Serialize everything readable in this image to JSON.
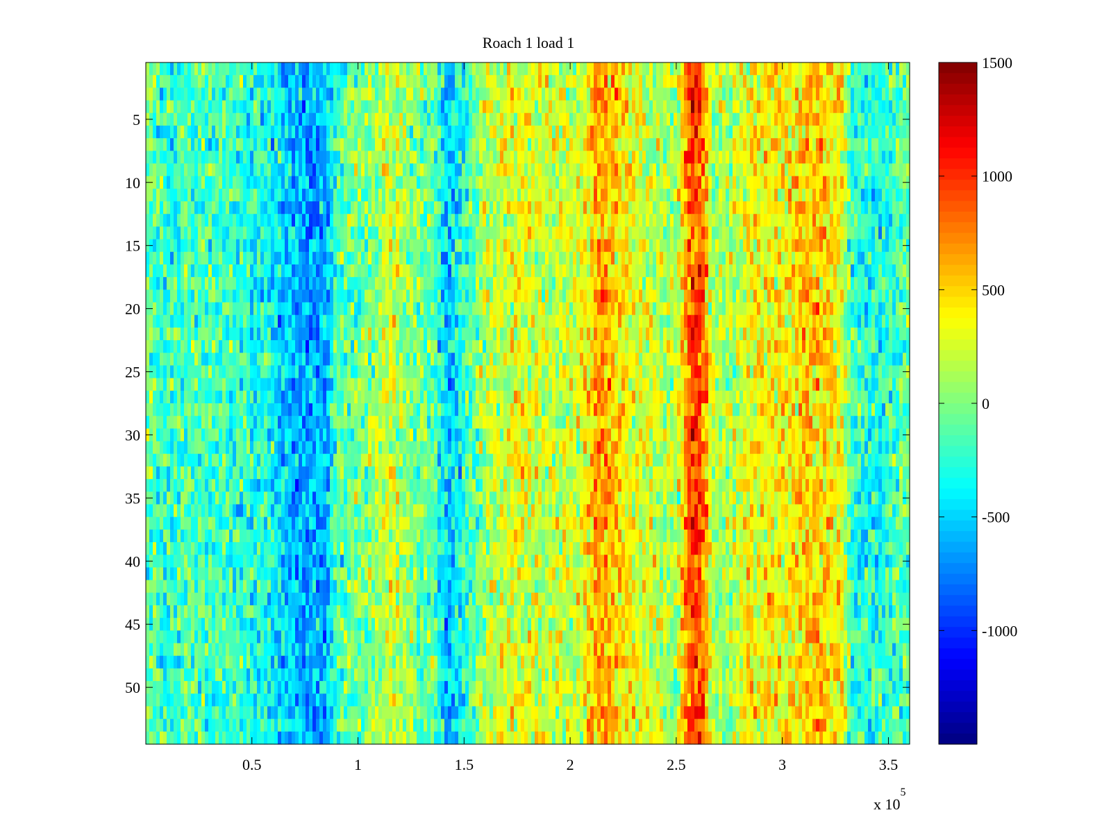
{
  "chart_data": {
    "type": "heatmap",
    "title": "Roach 1 load 1",
    "xlabel": "",
    "ylabel": "",
    "x_exponent_label": "x 10",
    "x_exponent_power": "5",
    "xlim": [
      0,
      3.6
    ],
    "ylim": [
      0.5,
      54.5
    ],
    "rows": 54,
    "x_ticks": [
      0.5,
      1,
      1.5,
      2,
      2.5,
      3,
      3.5
    ],
    "x_tick_labels": [
      "0.5",
      "1",
      "1.5",
      "2",
      "2.5",
      "3",
      "3.5"
    ],
    "y_ticks": [
      5,
      10,
      15,
      20,
      25,
      30,
      35,
      40,
      45,
      50
    ],
    "y_tick_labels": [
      "5",
      "10",
      "15",
      "20",
      "25",
      "30",
      "35",
      "40",
      "45",
      "50"
    ],
    "colorbar": {
      "colormap": "jet",
      "range": [
        -1500,
        1500
      ],
      "ticks": [
        -1000,
        -500,
        0,
        500,
        1000,
        1500
      ],
      "tick_labels": [
        "-1000",
        "-500",
        "0",
        "500",
        "1000",
        "1500"
      ]
    },
    "column_profile_x": [
      0,
      0.1,
      0.25,
      0.4,
      0.55,
      0.65,
      0.75,
      0.85,
      0.9,
      0.95,
      1.05,
      1.15,
      1.25,
      1.35,
      1.42,
      1.48,
      1.6,
      1.75,
      1.9,
      2.05,
      2.12,
      2.2,
      2.3,
      2.4,
      2.5,
      2.57,
      2.62,
      2.67,
      2.75,
      2.85,
      2.95,
      3.05,
      3.12,
      3.2,
      3.28,
      3.33,
      3.45,
      3.6
    ],
    "column_profile_value": [
      -50,
      -250,
      -150,
      -200,
      -300,
      -500,
      -650,
      -600,
      -150,
      -100,
      0,
      250,
      50,
      -100,
      -550,
      -350,
      150,
      300,
      200,
      250,
      650,
      550,
      300,
      200,
      100,
      950,
      900,
      150,
      100,
      400,
      350,
      400,
      550,
      500,
      350,
      -250,
      -300,
      -50
    ],
    "noise_amplitude": 300
  }
}
